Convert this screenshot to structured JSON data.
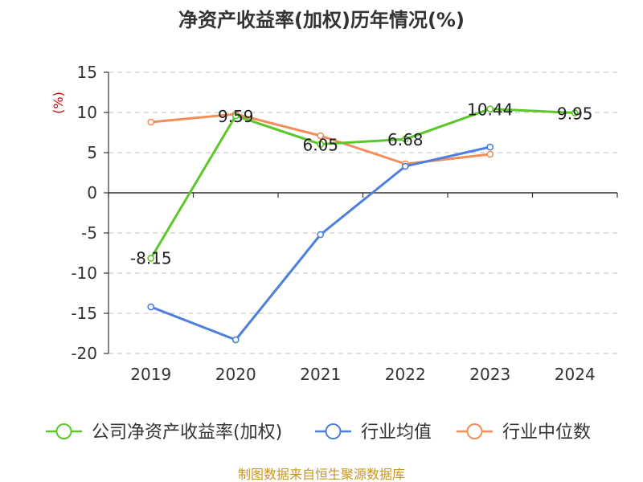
{
  "chart_data": {
    "type": "line",
    "title": "净资产收益率(加权)历年情况(%)",
    "ylabel": "(%)",
    "xlabel": "",
    "categories": [
      "2019",
      "2020",
      "2021",
      "2022",
      "2023",
      "2024"
    ],
    "ylim": [
      -20,
      15
    ],
    "yticks": [
      15,
      10,
      5,
      0,
      -5,
      -10,
      -15,
      -20
    ],
    "grid": true,
    "legend_position": "bottom",
    "series": [
      {
        "name": "公司净资产收益率(加权)",
        "color": "#5cc72a",
        "values": [
          -8.15,
          9.59,
          6.05,
          6.68,
          10.44,
          9.95
        ],
        "labels": [
          "-8.15",
          "9.59",
          "6.05",
          "6.68",
          "10.44",
          "9.95"
        ]
      },
      {
        "name": "行业均值",
        "color": "#4f7fdc",
        "values": [
          -14.2,
          -18.3,
          -5.2,
          3.3,
          5.7,
          null
        ]
      },
      {
        "name": "行业中位数",
        "color": "#f28e5a",
        "values": [
          8.8,
          9.8,
          7.1,
          3.6,
          4.8,
          null
        ]
      }
    ],
    "source": "制图数据来自恒生聚源数据库"
  }
}
